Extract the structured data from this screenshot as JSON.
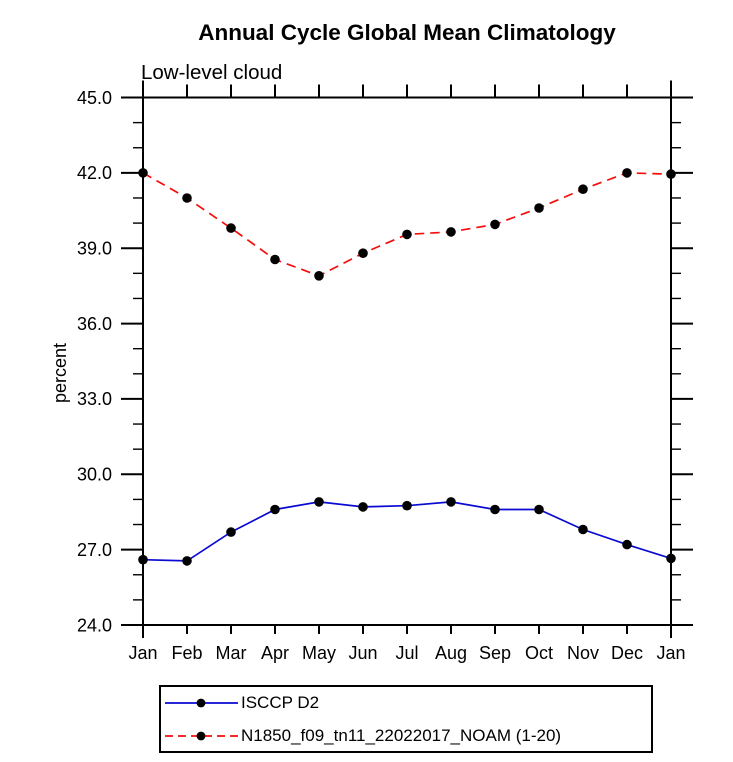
{
  "chart_data": {
    "type": "line",
    "title": "Annual Cycle Global Mean Climatology",
    "subtitle": "Low-level cloud",
    "ylabel": "percent",
    "xlabel": "",
    "categories": [
      "Jan",
      "Feb",
      "Mar",
      "Apr",
      "May",
      "Jun",
      "Jul",
      "Aug",
      "Sep",
      "Oct",
      "Nov",
      "Dec",
      "Jan"
    ],
    "ylim": [
      24.0,
      45.0
    ],
    "ytick_interval_major": 3.0,
    "ytick_interval_minor": 1.0,
    "ytick_labels": [
      "24.0",
      "27.0",
      "30.0",
      "33.0",
      "36.0",
      "39.0",
      "42.0",
      "45.0"
    ],
    "grid": false,
    "legend_position": "bottom-left",
    "axis_color": "#000000",
    "marker_shape": "filled-circle",
    "series": [
      {
        "name": "ISCCP D2",
        "color": "#0a0ad2",
        "line_style": "solid",
        "marker_color": "#000000",
        "values": [
          26.6,
          26.55,
          27.7,
          28.6,
          28.9,
          28.7,
          28.75,
          28.9,
          28.6,
          28.6,
          27.8,
          27.2,
          26.65
        ]
      },
      {
        "name": "N1850_f09_tn11_22022017_NOAM (1-20)",
        "color": "#f50d0d",
        "line_style": "dashed",
        "marker_color": "#000000",
        "values": [
          42.0,
          41.0,
          39.8,
          38.55,
          37.9,
          38.8,
          39.55,
          39.65,
          39.95,
          40.6,
          41.35,
          42.0,
          41.95
        ]
      }
    ]
  }
}
